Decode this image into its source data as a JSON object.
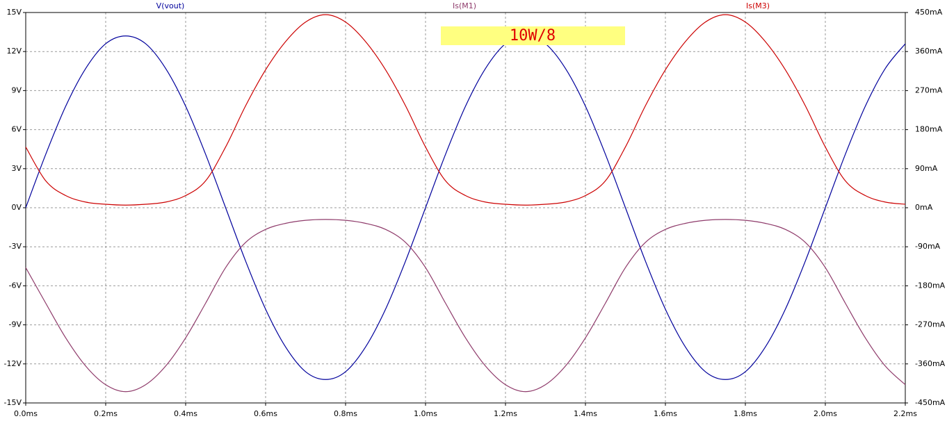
{
  "chart_data": {
    "type": "line",
    "annotation": "10W/8",
    "x": [
      0,
      0.05,
      0.1,
      0.15,
      0.2,
      0.25,
      0.3,
      0.35,
      0.4,
      0.45,
      0.5,
      0.55,
      0.6,
      0.65,
      0.7,
      0.75,
      0.8,
      0.85,
      0.9,
      0.95,
      1.0,
      1.05,
      1.1,
      1.15,
      1.2,
      1.25,
      1.3,
      1.35,
      1.4,
      1.45,
      1.5,
      1.55,
      1.6,
      1.65,
      1.7,
      1.75,
      1.8,
      1.85,
      1.9,
      1.95,
      2.0,
      2.05,
      2.1,
      2.15,
      2.2
    ],
    "series": [
      {
        "name": "V(vout)",
        "color": "#00009c",
        "values": [
          0,
          4.1,
          7.8,
          10.7,
          12.6,
          13.2,
          12.6,
          10.7,
          7.8,
          4.1,
          0,
          -4.1,
          -7.8,
          -10.7,
          -12.6,
          -13.2,
          -12.6,
          -10.7,
          -7.8,
          -4.1,
          0,
          4.1,
          7.8,
          10.7,
          12.6,
          13.2,
          12.6,
          10.7,
          7.8,
          4.1,
          0,
          -4.1,
          -7.8,
          -10.7,
          -12.6,
          -13.2,
          -12.6,
          -10.7,
          -7.8,
          -4.1,
          0,
          4.1,
          7.8,
          10.7,
          12.6
        ]
      },
      {
        "name": "Is(M1)",
        "color": "#8e3a6a",
        "axis": "y2",
        "values": [
          -138,
          -220,
          -300,
          -365,
          -408,
          -424,
          -408,
          -365,
          -300,
          -220,
          -138,
          -80,
          -50,
          -36,
          -29,
          -27,
          -29,
          -36,
          -50,
          -80,
          -138,
          -220,
          -300,
          -365,
          -408,
          -424,
          -408,
          -365,
          -300,
          -220,
          -138,
          -80,
          -50,
          -36,
          -29,
          -27,
          -29,
          -36,
          -50,
          -80,
          -138,
          -220,
          -300,
          -365,
          -408
        ]
      },
      {
        "name": "Is(M3)",
        "color": "#cc0000",
        "axis": "y2",
        "values": [
          140,
          62,
          28,
          13,
          8,
          6,
          8,
          13,
          28,
          62,
          140,
          235,
          318,
          383,
          428,
          445,
          428,
          383,
          318,
          235,
          140,
          62,
          28,
          13,
          8,
          6,
          8,
          13,
          28,
          62,
          140,
          235,
          318,
          383,
          428,
          445,
          428,
          383,
          318,
          235,
          140,
          62,
          28,
          13,
          8
        ]
      }
    ],
    "xlim": [
      0,
      2.2
    ],
    "xticks": [
      {
        "value": 0,
        "label": "0.0ms"
      },
      {
        "value": 0.2,
        "label": "0.2ms"
      },
      {
        "value": 0.4,
        "label": "0.4ms"
      },
      {
        "value": 0.6,
        "label": "0.6ms"
      },
      {
        "value": 0.8,
        "label": "0.8ms"
      },
      {
        "value": 1.0,
        "label": "1.0ms"
      },
      {
        "value": 1.2,
        "label": "1.2ms"
      },
      {
        "value": 1.4,
        "label": "1.4ms"
      },
      {
        "value": 1.6,
        "label": "1.6ms"
      },
      {
        "value": 1.8,
        "label": "1.8ms"
      },
      {
        "value": 2.0,
        "label": "2.0ms"
      },
      {
        "value": 2.2,
        "label": "2.2ms"
      }
    ],
    "ylim": [
      -15,
      15
    ],
    "yticks": [
      {
        "value": -15,
        "label": "-15V"
      },
      {
        "value": -12,
        "label": "-12V"
      },
      {
        "value": -9,
        "label": "-9V"
      },
      {
        "value": -6,
        "label": "-6V"
      },
      {
        "value": -3,
        "label": "-3V"
      },
      {
        "value": 0,
        "label": "0V"
      },
      {
        "value": 3,
        "label": "3V"
      },
      {
        "value": 6,
        "label": "6V"
      },
      {
        "value": 9,
        "label": "9V"
      },
      {
        "value": 12,
        "label": "12V"
      },
      {
        "value": 15,
        "label": "15V"
      }
    ],
    "y2lim": [
      -450,
      450
    ],
    "y2ticks": [
      {
        "value": -450,
        "label": "-450mA"
      },
      {
        "value": -360,
        "label": "-360mA"
      },
      {
        "value": -270,
        "label": "-270mA"
      },
      {
        "value": -180,
        "label": "-180mA"
      },
      {
        "value": -90,
        "label": "-90mA"
      },
      {
        "value": 0,
        "label": "0mA"
      },
      {
        "value": 90,
        "label": "90mA"
      },
      {
        "value": 180,
        "label": "180mA"
      },
      {
        "value": 270,
        "label": "270mA"
      },
      {
        "value": 360,
        "label": "360mA"
      },
      {
        "value": 450,
        "label": "450mA"
      }
    ],
    "grid": true
  }
}
